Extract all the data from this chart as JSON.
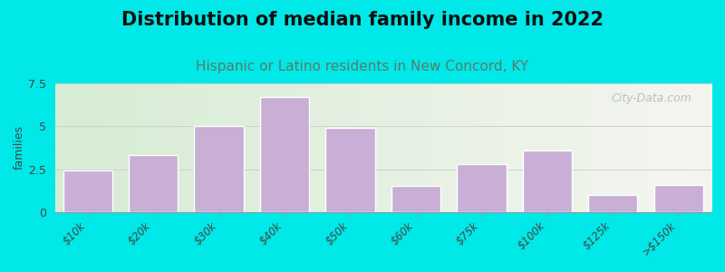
{
  "title": "Distribution of median family income in 2022",
  "subtitle": "Hispanic or Latino residents in New Concord, KY",
  "xlabel": "",
  "ylabel": "families",
  "categories": [
    "$10k",
    "$20k",
    "$30k",
    "$40k",
    "$50k",
    "$60k",
    "$75k",
    "$100k",
    "$125k",
    ">$150k"
  ],
  "values": [
    2.4,
    3.3,
    5.0,
    6.7,
    4.9,
    1.5,
    2.8,
    3.6,
    1.0,
    1.6
  ],
  "bar_color": "#c9aed6",
  "bar_edge_color": "#ffffff",
  "background_outer": "#00e8e8",
  "plot_bg_left": "#d6ecd4",
  "plot_bg_right": "#f5f5f0",
  "ylim": [
    0,
    7.5
  ],
  "yticks": [
    0,
    2.5,
    5,
    7.5
  ],
  "title_fontsize": 15,
  "subtitle_fontsize": 11,
  "subtitle_color": "#5a7a6a",
  "watermark": "City-Data.com",
  "watermark_color": "#b0b8b0"
}
